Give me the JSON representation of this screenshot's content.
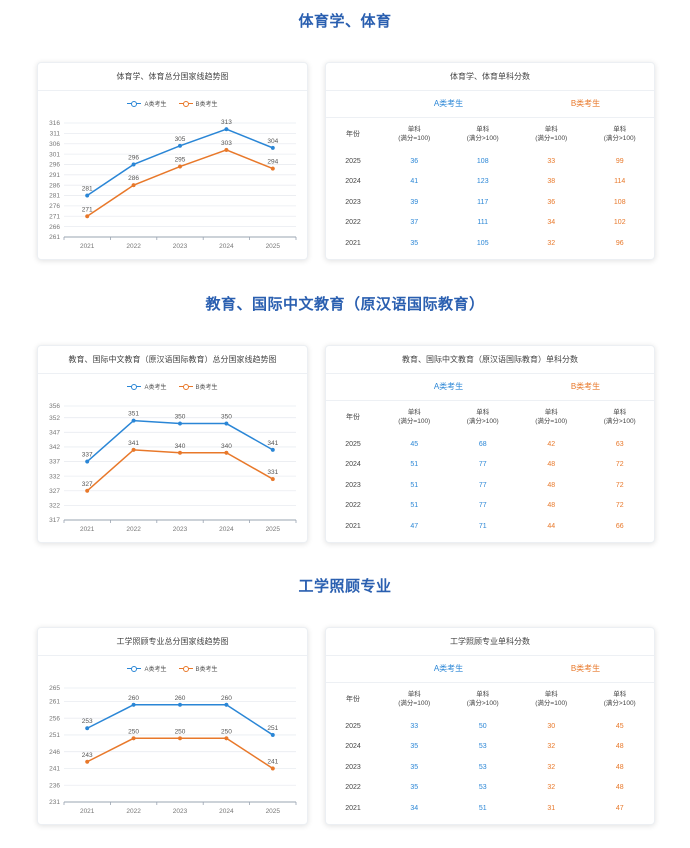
{
  "sections": [
    {
      "title": "体育学、体育",
      "chart_title": "体育学、体育总分国家线趋势图",
      "table_title": "体育学、体育单科分数",
      "chart_data": {
        "type": "line",
        "x": [
          "2021",
          "2022",
          "2023",
          "2024",
          "2025"
        ],
        "series": [
          {
            "name": "A类考生",
            "color": "#2a86d6",
            "values": [
              281,
              296,
              305,
              313,
              304
            ]
          },
          {
            "name": "B类考生",
            "color": "#e8782a",
            "values": [
              271,
              286,
              295,
              303,
              294
            ]
          }
        ],
        "yticks": [
          261,
          266,
          271,
          276,
          281,
          286,
          291,
          296,
          301,
          306,
          311,
          316
        ],
        "ylim": [
          261,
          316
        ],
        "grid": true,
        "legend": "top-center"
      },
      "table": {
        "group_a": "A类考生",
        "group_b": "B类考生",
        "year_header": "年份",
        "col_headers": [
          {
            "l1": "单科",
            "l2": "(满分=100)"
          },
          {
            "l1": "单科",
            "l2": "(满分>100)"
          },
          {
            "l1": "单科",
            "l2": "(满分=100)"
          },
          {
            "l1": "单科",
            "l2": "(满分>100)"
          }
        ],
        "rows": [
          {
            "year": "2025",
            "a1": "36",
            "a2": "108",
            "b1": "33",
            "b2": "99"
          },
          {
            "year": "2024",
            "a1": "41",
            "a2": "123",
            "b1": "38",
            "b2": "114"
          },
          {
            "year": "2023",
            "a1": "39",
            "a2": "117",
            "b1": "36",
            "b2": "108"
          },
          {
            "year": "2022",
            "a1": "37",
            "a2": "111",
            "b1": "34",
            "b2": "102"
          },
          {
            "year": "2021",
            "a1": "35",
            "a2": "105",
            "b1": "32",
            "b2": "96"
          }
        ]
      }
    },
    {
      "title": "教育、国际中文教育（原汉语国际教育）",
      "chart_title": "教育、国际中文教育（原汉语国际教育）总分国家线趋势图",
      "table_title": "教育、国际中文教育（原汉语国际教育）单科分数",
      "chart_data": {
        "type": "line",
        "x": [
          "2021",
          "2022",
          "2023",
          "2024",
          "2025"
        ],
        "series": [
          {
            "name": "A类考生",
            "color": "#2a86d6",
            "values": [
              337,
              351,
              350,
              350,
              341
            ]
          },
          {
            "name": "B类考生",
            "color": "#e8782a",
            "values": [
              327,
              341,
              340,
              340,
              331
            ]
          }
        ],
        "yticks": [
          317,
          322,
          327,
          332,
          337,
          342,
          347,
          352,
          356
        ],
        "ylim": [
          317,
          356
        ],
        "grid": true,
        "legend": "top-center"
      },
      "table": {
        "group_a": "A类考生",
        "group_b": "B类考生",
        "year_header": "年份",
        "col_headers": [
          {
            "l1": "单科",
            "l2": "(满分=100)"
          },
          {
            "l1": "单科",
            "l2": "(满分>100)"
          },
          {
            "l1": "单科",
            "l2": "(满分=100)"
          },
          {
            "l1": "单科",
            "l2": "(满分>100)"
          }
        ],
        "rows": [
          {
            "year": "2025",
            "a1": "45",
            "a2": "68",
            "b1": "42",
            "b2": "63"
          },
          {
            "year": "2024",
            "a1": "51",
            "a2": "77",
            "b1": "48",
            "b2": "72"
          },
          {
            "year": "2023",
            "a1": "51",
            "a2": "77",
            "b1": "48",
            "b2": "72"
          },
          {
            "year": "2022",
            "a1": "51",
            "a2": "77",
            "b1": "48",
            "b2": "72"
          },
          {
            "year": "2021",
            "a1": "47",
            "a2": "71",
            "b1": "44",
            "b2": "66"
          }
        ]
      }
    },
    {
      "title": "工学照顾专业",
      "chart_title": "工学照顾专业总分国家线趋势图",
      "table_title": "工学照顾专业单科分数",
      "chart_data": {
        "type": "line",
        "x": [
          "2021",
          "2022",
          "2023",
          "2024",
          "2025"
        ],
        "series": [
          {
            "name": "A类考生",
            "color": "#2a86d6",
            "values": [
              253,
              260,
              260,
              260,
              251
            ]
          },
          {
            "name": "B类考生",
            "color": "#e8782a",
            "values": [
              243,
              250,
              250,
              250,
              241
            ]
          }
        ],
        "yticks": [
          231,
          236,
          241,
          246,
          251,
          256,
          261,
          265
        ],
        "ylim": [
          231,
          265
        ],
        "grid": true,
        "legend": "top-center"
      },
      "table": {
        "group_a": "A类考生",
        "group_b": "B类考生",
        "year_header": "年份",
        "col_headers": [
          {
            "l1": "单科",
            "l2": "(满分=100)"
          },
          {
            "l1": "单科",
            "l2": "(满分>100)"
          },
          {
            "l1": "单科",
            "l2": "(满分=100)"
          },
          {
            "l1": "单科",
            "l2": "(满分>100)"
          }
        ],
        "rows": [
          {
            "year": "2025",
            "a1": "33",
            "a2": "50",
            "b1": "30",
            "b2": "45"
          },
          {
            "year": "2024",
            "a1": "35",
            "a2": "53",
            "b1": "32",
            "b2": "48"
          },
          {
            "year": "2023",
            "a1": "35",
            "a2": "53",
            "b1": "32",
            "b2": "48"
          },
          {
            "year": "2022",
            "a1": "35",
            "a2": "53",
            "b1": "32",
            "b2": "48"
          },
          {
            "year": "2021",
            "a1": "34",
            "a2": "51",
            "b1": "31",
            "b2": "47"
          }
        ]
      }
    }
  ]
}
